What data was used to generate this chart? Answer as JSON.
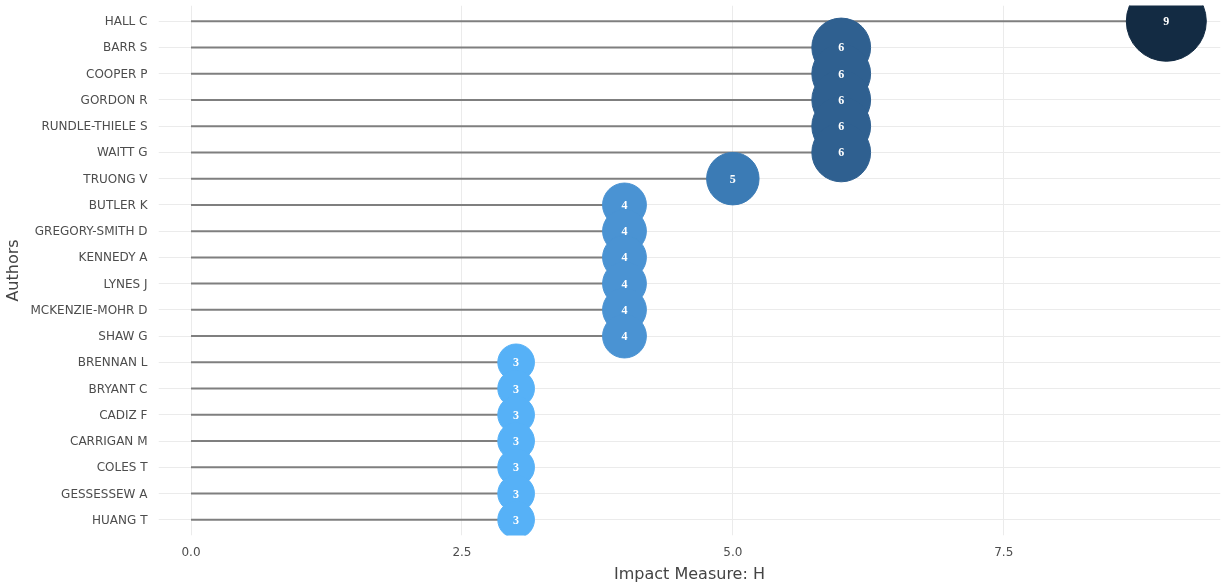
{
  "chart_data": {
    "type": "lollipop",
    "orientation": "horizontal",
    "xlabel": "Impact Measure: H",
    "ylabel": "Authors",
    "categories": [
      "HALL C",
      "BARR S",
      "COOPER P",
      "GORDON R",
      "RUNDLE-THIELE S",
      "WAITT G",
      "TRUONG V",
      "BUTLER K",
      "GREGORY-SMITH D",
      "KENNEDY A",
      "LYNES J",
      "MCKENZIE-MOHR D",
      "SHAW G",
      "BRENNAN L",
      "BRYANT C",
      "CADIZ F",
      "CARRIGAN M",
      "COLES T",
      "GESSESSEW A",
      "HUANG T"
    ],
    "values": [
      9,
      6,
      6,
      6,
      6,
      6,
      5,
      4,
      4,
      4,
      4,
      4,
      4,
      3,
      3,
      3,
      3,
      3,
      3,
      3
    ],
    "sizes": [
      1,
      0.54,
      0.54,
      0.54,
      0.54,
      0.54,
      0.43,
      0.3,
      0.3,
      0.3,
      0.3,
      0.3,
      0.3,
      0.21,
      0.21,
      0.21,
      0.21,
      0.21,
      0.21,
      0.21
    ],
    "colors": [
      "#132b43",
      "#2f6090",
      "#2f6090",
      "#2f6090",
      "#2f6090",
      "#2f6090",
      "#3b7bb5",
      "#4a93d3",
      "#4a93d3",
      "#4a93d3",
      "#4a93d3",
      "#4a93d3",
      "#4a93d3",
      "#56b1f7",
      "#56b1f7",
      "#56b1f7",
      "#56b1f7",
      "#56b1f7",
      "#56b1f7",
      "#56b1f7"
    ],
    "xlim": [
      -0.3,
      9.5
    ],
    "xticks": [
      {
        "value": 0,
        "label": "0.0"
      },
      {
        "value": 2.5,
        "label": "2.5"
      },
      {
        "value": 5,
        "label": "5.0"
      },
      {
        "value": 7.5,
        "label": "7.5"
      }
    ],
    "grid": true,
    "data_labels": true
  }
}
